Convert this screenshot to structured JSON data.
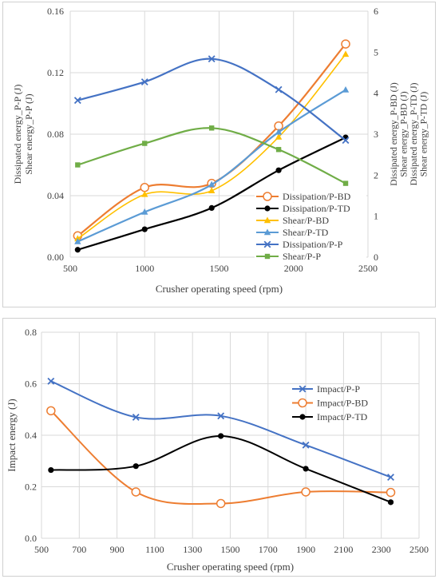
{
  "chart_data": [
    {
      "type": "line",
      "title": "",
      "xlabel": "Crusher operating speed (rpm)",
      "ylabel_left": [
        "Dissipated energy_P-P (J)",
        "Shear energy_P-P (J)"
      ],
      "ylabel_right": [
        "Dissipated energy_P-BD (J)",
        "Shear energy_P-BD (J)",
        "Dissipated energy_P-TD (J)",
        "Shear energy_P-TD (J)"
      ],
      "xlim": [
        500,
        2500
      ],
      "xticks": [
        "500",
        "1000",
        "1500",
        "2000",
        "2500"
      ],
      "ylim_left": [
        0,
        0.16
      ],
      "yticks_left": [
        "0.00",
        "0.04",
        "0.08",
        "0.12",
        "0.16"
      ],
      "ylim_right": [
        0,
        6
      ],
      "yticks_right": [
        "0",
        "1",
        "2",
        "3",
        "4",
        "5",
        "6"
      ],
      "grid": true,
      "legend_position": "right",
      "x": [
        550,
        1000,
        1450,
        1900,
        2350
      ],
      "series": [
        {
          "name": "Dissipation/P-BD",
          "axis": "right",
          "color": "#ED7D31",
          "marker": "circle-open",
          "values": [
            0.52,
            1.7,
            1.8,
            3.2,
            5.2
          ]
        },
        {
          "name": "Dissipation/P-TD",
          "axis": "right",
          "color": "#000000",
          "marker": "circle",
          "values": [
            0.18,
            0.68,
            1.2,
            2.12,
            2.92
          ]
        },
        {
          "name": "Shear/P-BD",
          "axis": "right",
          "color": "#FFC000",
          "marker": "triangle",
          "values": [
            0.45,
            1.53,
            1.62,
            2.93,
            4.95
          ]
        },
        {
          "name": "Shear/P-TD",
          "axis": "right",
          "color": "#5B9BD5",
          "marker": "triangle",
          "values": [
            0.38,
            1.1,
            1.77,
            3.05,
            4.08
          ]
        },
        {
          "name": "Dissipation/P-P",
          "axis": "left",
          "color": "#4472C4",
          "marker": "x",
          "values": [
            0.102,
            0.114,
            0.129,
            0.109,
            0.076
          ]
        },
        {
          "name": "Shear/P-P",
          "axis": "left",
          "color": "#70AD47",
          "marker": "square",
          "values": [
            0.06,
            0.074,
            0.084,
            0.07,
            0.048
          ]
        }
      ]
    },
    {
      "type": "line",
      "title": "",
      "xlabel": "Crusher operating speed (rpm)",
      "ylabel": "Impact energy (J)",
      "xlim": [
        500,
        2500
      ],
      "xticks": [
        "500",
        "700",
        "900",
        "1100",
        "1300",
        "1500",
        "1700",
        "1900",
        "2100",
        "2300",
        "2500"
      ],
      "ylim": [
        0,
        0.8
      ],
      "yticks": [
        "0.0",
        "0.2",
        "0.4",
        "0.6",
        "0.8"
      ],
      "grid": true,
      "legend_position": "right",
      "x": [
        550,
        1000,
        1450,
        1900,
        2350
      ],
      "series": [
        {
          "name": "Impact/P-P",
          "color": "#4472C4",
          "marker": "x",
          "values": [
            0.61,
            0.47,
            0.475,
            0.362,
            0.237
          ]
        },
        {
          "name": "Impact/P-BD",
          "color": "#ED7D31",
          "marker": "circle-open",
          "values": [
            0.495,
            0.18,
            0.135,
            0.18,
            0.178
          ]
        },
        {
          "name": "Impact/P-TD",
          "color": "#000000",
          "marker": "circle",
          "values": [
            0.265,
            0.28,
            0.397,
            0.27,
            0.14
          ]
        }
      ]
    }
  ]
}
